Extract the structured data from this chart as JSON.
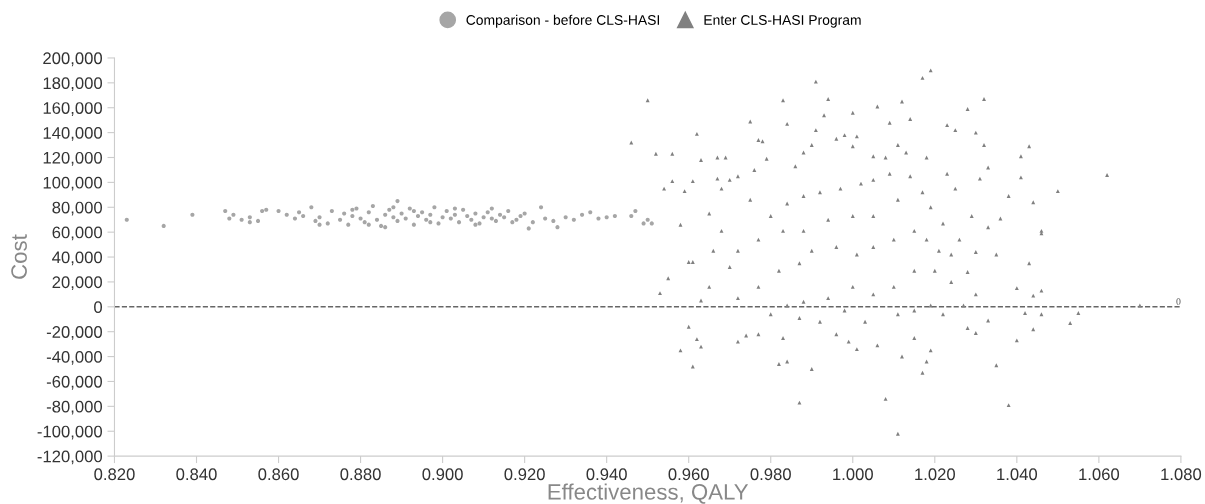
{
  "chart_data": {
    "type": "scatter",
    "xlabel": "Effectiveness, QALY",
    "ylabel": "Cost",
    "legend": "top",
    "grid": false,
    "xlim": [
      0.82,
      1.08
    ],
    "xticks": [
      {
        "value": 0.82,
        "label": "0.820"
      },
      {
        "value": 0.84,
        "label": "0.840"
      },
      {
        "value": 0.86,
        "label": "0.860"
      },
      {
        "value": 0.88,
        "label": "0.880"
      },
      {
        "value": 0.9,
        "label": "0.900"
      },
      {
        "value": 0.92,
        "label": "0.920"
      },
      {
        "value": 0.94,
        "label": "0.940"
      },
      {
        "value": 0.96,
        "label": "0.960"
      },
      {
        "value": 0.98,
        "label": "0.980"
      },
      {
        "value": 1.0,
        "label": "1.000"
      },
      {
        "value": 1.02,
        "label": "1.020"
      },
      {
        "value": 1.04,
        "label": "1.040"
      },
      {
        "value": 1.06,
        "label": "1.060"
      },
      {
        "value": 1.08,
        "label": "1.080"
      }
    ],
    "ylim": [
      -120000,
      200000
    ],
    "yticks": [
      {
        "value": -120000,
        "label": "-120,000"
      },
      {
        "value": -100000,
        "label": "-100,000"
      },
      {
        "value": -80000,
        "label": "-80,000"
      },
      {
        "value": -60000,
        "label": "-60,000"
      },
      {
        "value": -40000,
        "label": "-40,000"
      },
      {
        "value": -20000,
        "label": "-20,000"
      },
      0,
      {
        "value": 20000,
        "label": "20,000"
      },
      {
        "value": 40000,
        "label": "40,000"
      },
      {
        "value": 60000,
        "label": "60,000"
      },
      {
        "value": 80000,
        "label": "80,000"
      },
      {
        "value": 100000,
        "label": "100,000"
      },
      {
        "value": 120000,
        "label": "120,000"
      },
      {
        "value": 140000,
        "label": "140,000"
      },
      {
        "value": 160000,
        "label": "160,000"
      },
      {
        "value": 180000,
        "label": "180,000"
      },
      {
        "value": 200000,
        "label": "200,000"
      }
    ],
    "ref_lines": [
      {
        "axis": "y",
        "value": 0,
        "label": "0",
        "color": "#666666",
        "line_style": "dashed"
      }
    ],
    "series": [
      {
        "name": "Comparison - before CLS-HASI",
        "color": "#a6a6a6",
        "marker": "circle",
        "x": [
          0.823,
          0.832,
          0.839,
          0.847,
          0.848,
          0.849,
          0.851,
          0.853,
          0.853,
          0.855,
          0.856,
          0.857,
          0.86,
          0.889,
          0.886,
          0.921,
          0.924,
          0.928,
          0.94,
          0.942,
          0.946,
          0.947,
          0.949,
          0.95,
          0.951,
          0.862,
          0.864,
          0.865,
          0.866,
          0.868,
          0.869,
          0.87,
          0.872,
          0.873,
          0.875,
          0.876,
          0.877,
          0.878,
          0.879,
          0.88,
          0.881,
          0.882,
          0.883,
          0.884,
          0.885,
          0.886,
          0.887,
          0.888,
          0.889,
          0.89,
          0.891,
          0.892,
          0.893,
          0.894,
          0.895,
          0.896,
          0.897,
          0.898,
          0.899,
          0.9,
          0.901,
          0.902,
          0.903,
          0.904,
          0.905,
          0.906,
          0.907,
          0.908,
          0.909,
          0.91,
          0.911,
          0.912,
          0.913,
          0.914,
          0.915,
          0.916,
          0.918,
          0.919,
          0.92,
          0.922,
          0.925,
          0.927,
          0.93,
          0.932,
          0.934,
          0.936,
          0.938,
          0.87,
          0.878,
          0.882,
          0.888,
          0.893,
          0.897,
          0.903,
          0.908,
          0.912,
          0.917
        ],
        "values": [
          70000,
          65000,
          74000,
          77000,
          71000,
          74000,
          70000,
          72000,
          68000,
          69000,
          77000,
          78000,
          77000,
          85000,
          64000,
          63000,
          80000,
          64000,
          72000,
          73000,
          73000,
          77000,
          67000,
          70000,
          67000,
          74000,
          71000,
          76000,
          73000,
          80000,
          69000,
          72000,
          67000,
          77000,
          70000,
          75000,
          66000,
          73000,
          79000,
          71000,
          68000,
          76000,
          81000,
          70000,
          65000,
          74000,
          78000,
          72000,
          69000,
          75000,
          71000,
          79000,
          66000,
          73000,
          76000,
          70000,
          74000,
          80000,
          67000,
          72000,
          77000,
          71000,
          74000,
          68000,
          78000,
          73000,
          70000,
          75000,
          67000,
          72000,
          76000,
          71000,
          69000,
          74000,
          72000,
          77000,
          70000,
          73000,
          75000,
          68000,
          71000,
          69000,
          72000,
          70000,
          74000,
          76000,
          71000,
          66000,
          78000,
          66000,
          80000,
          77000,
          68000,
          79000,
          66000,
          79000,
          68000
        ]
      },
      {
        "name": "Enter CLS-HASI Program",
        "color": "#808080",
        "marker": "triangle",
        "x": [
          0.95,
          0.946,
          0.952,
          0.956,
          0.954,
          0.956,
          0.953,
          0.955,
          0.958,
          0.961,
          0.96,
          0.962,
          0.963,
          0.963,
          0.962,
          0.961,
          0.959,
          0.958,
          0.96,
          0.961,
          0.963,
          0.965,
          0.967,
          0.969,
          0.967,
          0.975,
          0.972,
          0.974,
          0.977,
          0.978,
          0.983,
          0.984,
          0.982,
          0.984,
          0.987,
          0.99,
          0.991,
          0.994,
          0.993,
          0.991,
          1.0,
          1.001,
          1.006,
          1.009,
          1.012,
          1.014,
          1.017,
          1.019,
          1.023,
          1.025,
          1.028,
          1.032,
          1.03,
          1.032,
          1.041,
          1.043,
          1.041,
          1.05,
          1.062,
          1.038,
          1.044,
          1.046,
          1.046,
          1.043,
          1.04,
          1.044,
          1.046,
          1.042,
          1.046,
          1.055,
          1.053,
          1.07,
          1.044,
          1.04,
          1.035,
          1.038,
          1.008,
          1.011,
          1.012,
          1.017,
          1.018,
          1.019,
          1.033,
          1.028,
          1.03,
          1.035,
          1.036,
          1.033,
          1.033,
          1.025,
          1.031,
          1.028,
          1.03,
          1.024,
          1.021,
          1.023,
          1.018,
          1.013,
          1.011,
          1.008,
          1.005,
          1.0,
          0.998,
          0.996,
          0.99,
          0.988,
          0.986,
          0.979,
          0.976,
          0.972,
          0.97,
          0.968,
          0.975,
          0.98,
          0.984,
          0.988,
          0.992,
          0.997,
          1.002,
          1.005,
          1.009,
          1.014,
          1.017,
          1.019,
          1.011,
          1.005,
          1.0,
          0.994,
          0.988,
          0.983,
          0.977,
          0.972,
          0.968,
          0.966,
          0.97,
          0.965,
          0.972,
          0.977,
          0.982,
          0.987,
          0.99,
          0.996,
          1.001,
          1.005,
          1.01,
          1.015,
          1.018,
          1.022,
          1.026,
          1.029,
          1.024,
          1.02,
          1.015,
          1.01,
          1.005,
          1.0,
          0.994,
          0.988,
          0.984,
          0.98,
          0.987,
          0.992,
          0.998,
          1.003,
          1.011,
          1.015,
          1.019,
          1.022,
          1.027,
          1.03,
          1.001,
          0.999,
          0.996,
          1.006,
          1.015,
          0.977,
          0.983
        ],
        "values": [
          166000,
          132000,
          123000,
          123000,
          95000,
          101000,
          11000,
          23000,
          -35000,
          -48000,
          -16000,
          139000,
          118000,
          -32000,
          -26000,
          101000,
          93000,
          66000,
          36000,
          36000,
          5000,
          75000,
          103000,
          120000,
          120000,
          149000,
          -28000,
          -23000,
          134000,
          133000,
          166000,
          147000,
          -46000,
          -44000,
          -77000,
          -50000,
          181000,
          167000,
          154000,
          142000,
          156000,
          137000,
          161000,
          148000,
          165000,
          151000,
          184000,
          190000,
          146000,
          142000,
          159000,
          167000,
          140000,
          130000,
          121000,
          129000,
          104000,
          93000,
          106000,
          89000,
          84000,
          61000,
          59000,
          35000,
          15000,
          9000,
          13000,
          -5000,
          -6000,
          -5000,
          -13000,
          1000,
          -18000,
          -27000,
          -47000,
          -79000,
          -74000,
          -102000,
          -40000,
          -53000,
          -44000,
          -35000,
          -11000,
          -17000,
          -21000,
          42000,
          71000,
          64000,
          112000,
          95000,
          103000,
          28000,
          44000,
          20000,
          45000,
          107000,
          120000,
          124000,
          130000,
          120000,
          121000,
          129000,
          138000,
          135000,
          130000,
          124000,
          113000,
          119000,
          110000,
          105000,
          102000,
          95000,
          86000,
          73000,
          83000,
          89000,
          92000,
          95000,
          99000,
          102000,
          107000,
          105000,
          92000,
          80000,
          86000,
          73000,
          73000,
          70000,
          61000,
          61000,
          54000,
          45000,
          61000,
          45000,
          32000,
          16000,
          7000,
          16000,
          29000,
          35000,
          45000,
          48000,
          42000,
          48000,
          54000,
          61000,
          54000,
          67000,
          54000,
          73000,
          42000,
          29000,
          29000,
          16000,
          10000,
          16000,
          7000,
          4000,
          1000,
          -6000,
          -9000,
          -12000,
          -3000,
          -12000,
          -6000,
          -3000,
          1000,
          -6000,
          1000,
          10000,
          -34000,
          -28000,
          -22000,
          -31000,
          -25000,
          -22000,
          -25000
        ]
      }
    ]
  }
}
